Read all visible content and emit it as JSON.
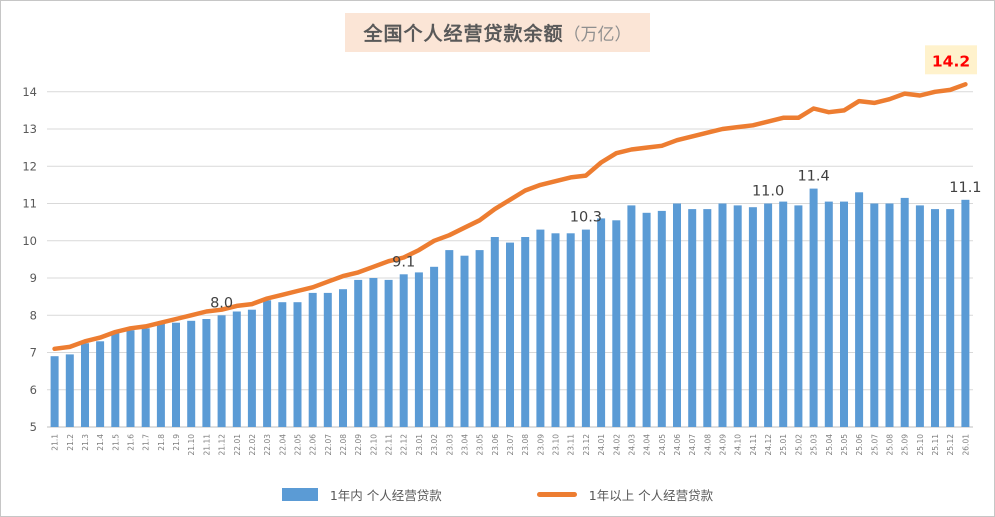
{
  "title": {
    "text": "全国个人经营贷款余额",
    "unit_suffix": "（万亿）",
    "bg_color": "#fbe5d6",
    "text_color": "#595959",
    "suffix_color": "#8f8f8f"
  },
  "colors": {
    "gridline": "#d9d9d9",
    "axis_line": "#bfbfbf",
    "y_tick_label": "#595959",
    "x_tick_label": "#7f7f7f",
    "data_label": "#404040",
    "bar": "#5b9bd5",
    "line": "#ed7d31",
    "highlight_label": "#ff0000",
    "highlight_bg": "#fff2cc"
  },
  "legend": {
    "items": [
      {
        "label": "1年内 个人经营贷款",
        "shape": "rect",
        "color": "#5b9bd5"
      },
      {
        "label": "1年以上 个人经营贷款",
        "shape": "line",
        "color": "#ed7d31"
      }
    ]
  },
  "chart_data": {
    "type": "combo",
    "title": "全国个人经营贷款余额（万亿）",
    "grid": true,
    "legend_position": "bottom",
    "ylim": [
      5,
      14.7
    ],
    "yticks": [
      5,
      6,
      7,
      8,
      9,
      10,
      11,
      12,
      13,
      14
    ],
    "categories": [
      "21.1",
      "21.2",
      "21.3",
      "21.4",
      "21.5",
      "21.6",
      "21.7",
      "21.8",
      "21.9",
      "21.10",
      "21.11",
      "21.12",
      "22.01",
      "22.02",
      "22.03",
      "22.04",
      "22.05",
      "22.06",
      "22.07",
      "22.08",
      "22.09",
      "22.10",
      "22.11",
      "22.12",
      "23.01",
      "23.02",
      "23.03",
      "23.04",
      "23.05",
      "23.06",
      "23.07",
      "23.08",
      "23.09",
      "23.10",
      "23.11",
      "23.12",
      "24.01",
      "24.02",
      "24.03",
      "24.04",
      "24.05",
      "24.06",
      "24.07",
      "24.08",
      "24.09",
      "24.10",
      "24.11",
      "24.12",
      "25.01",
      "25.02",
      "25.03",
      "25.04",
      "25.05",
      "25.06",
      "25.07",
      "25.08",
      "25.09",
      "25.10",
      "25.11",
      "25.12",
      "26.01"
    ],
    "series": [
      {
        "name": "1年内 个人经营贷款",
        "type": "bar",
        "color": "#5b9bd5",
        "values": [
          6.9,
          6.95,
          7.25,
          7.3,
          7.55,
          7.6,
          7.65,
          7.8,
          7.8,
          7.85,
          7.9,
          8.0,
          8.1,
          8.15,
          8.4,
          8.35,
          8.35,
          8.6,
          8.6,
          8.7,
          8.95,
          9.0,
          8.95,
          9.1,
          9.15,
          9.3,
          9.75,
          9.6,
          9.75,
          10.1,
          9.95,
          10.1,
          10.3,
          10.2,
          10.2,
          10.3,
          10.6,
          10.55,
          10.95,
          10.75,
          10.8,
          11.0,
          10.85,
          10.85,
          11.0,
          10.95,
          10.9,
          11.0,
          11.05,
          10.95,
          11.4,
          11.05,
          11.05,
          11.3,
          11.0,
          11.0,
          11.15,
          10.95,
          10.85,
          10.85,
          11.1
        ]
      },
      {
        "name": "1年以上 个人经营贷款",
        "type": "line",
        "color": "#ed7d31",
        "values": [
          7.1,
          7.15,
          7.3,
          7.4,
          7.55,
          7.65,
          7.7,
          7.8,
          7.9,
          8.0,
          8.1,
          8.15,
          8.25,
          8.3,
          8.45,
          8.55,
          8.65,
          8.75,
          8.9,
          9.05,
          9.15,
          9.3,
          9.45,
          9.55,
          9.75,
          10.0,
          10.15,
          10.35,
          10.55,
          10.85,
          11.1,
          11.35,
          11.5,
          11.6,
          11.7,
          11.75,
          12.1,
          12.35,
          12.45,
          12.5,
          12.55,
          12.7,
          12.8,
          12.9,
          13.0,
          13.05,
          13.1,
          13.2,
          13.3,
          13.3,
          13.55,
          13.45,
          13.5,
          13.75,
          13.7,
          13.8,
          13.95,
          13.9,
          14.0,
          14.05,
          14.2
        ]
      }
    ],
    "data_labels": {
      "bar": [
        {
          "index": 11,
          "category": "21.12",
          "text": "8.0"
        },
        {
          "index": 23,
          "category": "22.12",
          "text": "9.1"
        },
        {
          "index": 35,
          "category": "23.12",
          "text": "10.3"
        },
        {
          "index": 47,
          "category": "24.12",
          "text": "11.0"
        },
        {
          "index": 50,
          "category": "25.03",
          "text": "11.4"
        },
        {
          "index": 60,
          "category": "26.01",
          "text": "11.1"
        }
      ],
      "line": [
        {
          "index": 60,
          "category": "26.01",
          "text": "14.2",
          "highlight": true
        }
      ]
    }
  }
}
